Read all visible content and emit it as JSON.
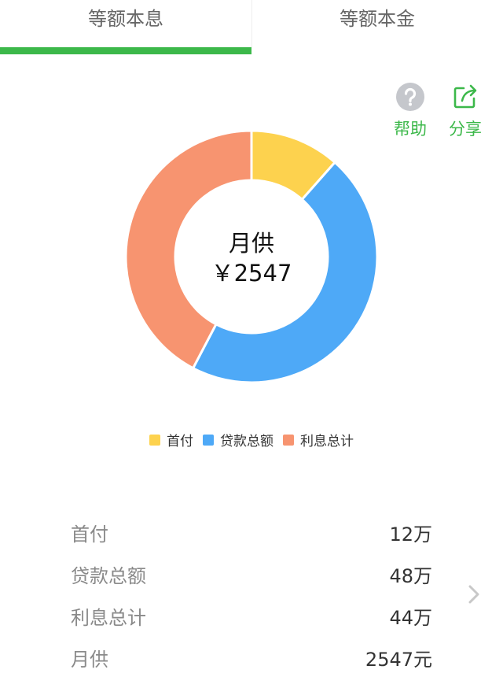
{
  "tabs": {
    "equal_installment": "等额本息",
    "equal_principal": "等额本金"
  },
  "actions": {
    "help": "帮助",
    "share": "分享"
  },
  "center": {
    "title": "月供",
    "value": "￥2547"
  },
  "colors": {
    "accent": "#3cb84a",
    "down_payment": "#fdd24e",
    "loan_total": "#4ea9f7",
    "interest_total": "#f79470"
  },
  "chart_data": {
    "type": "pie",
    "categories": [
      "首付",
      "贷款总额",
      "利息总计"
    ],
    "values": [
      12,
      48,
      44
    ],
    "colors": [
      "#fdd24e",
      "#4ea9f7",
      "#f79470"
    ]
  },
  "legend": [
    "首付",
    "贷款总额",
    "利息总计"
  ],
  "summary": [
    {
      "label": "首付",
      "value": "12万"
    },
    {
      "label": "贷款总额",
      "value": "48万"
    },
    {
      "label": "利息总计",
      "value": "44万"
    },
    {
      "label": "月供",
      "value": "2547元"
    }
  ]
}
